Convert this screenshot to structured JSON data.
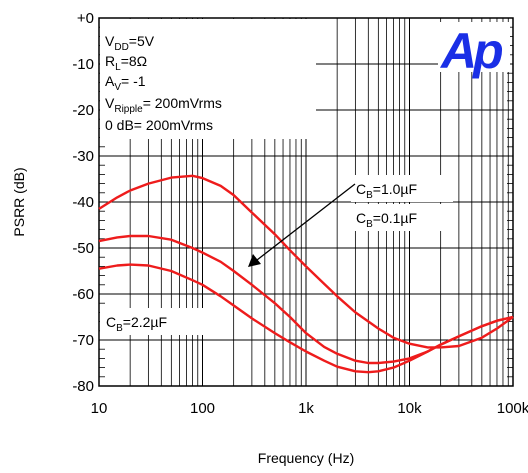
{
  "chart_data": {
    "type": "line",
    "xlabel": "Frequency (Hz)",
    "ylabel": "PSRR (dB)",
    "x_scale": "log",
    "xlim": [
      10,
      100000
    ],
    "ylim": [
      -80,
      0
    ],
    "x_ticks": [
      {
        "value": 10,
        "label": "10"
      },
      {
        "value": 100,
        "label": "100"
      },
      {
        "value": 1000,
        "label": "1k"
      },
      {
        "value": 10000,
        "label": "10k"
      },
      {
        "value": 100000,
        "label": "100k"
      }
    ],
    "y_ticks": [
      {
        "value": 0,
        "label": "+0"
      },
      {
        "value": -10,
        "label": "-10"
      },
      {
        "value": -20,
        "label": "-20"
      },
      {
        "value": -30,
        "label": "-30"
      },
      {
        "value": -40,
        "label": "-40"
      },
      {
        "value": -50,
        "label": "-50"
      },
      {
        "value": -60,
        "label": "-60"
      },
      {
        "value": -70,
        "label": "-70"
      },
      {
        "value": -80,
        "label": "-80"
      }
    ],
    "grid": true,
    "line_color": "#ee1c1c",
    "series": [
      {
        "name": "CB=0.1µF",
        "x": [
          10,
          15,
          20,
          30,
          50,
          80,
          100,
          150,
          200,
          300,
          500,
          700,
          1000,
          1500,
          2000,
          3000,
          5000,
          7000,
          10000,
          15000,
          20000,
          30000,
          50000,
          70000,
          100000
        ],
        "y": [
          -41.5,
          -39,
          -37.5,
          -36,
          -34.7,
          -34.3,
          -34.8,
          -36.5,
          -38.5,
          -42.3,
          -47,
          -50.5,
          -54,
          -57.8,
          -60.5,
          -64,
          -67.5,
          -69.5,
          -70.8,
          -71.6,
          -71.6,
          -71.3,
          -69.5,
          -67.5,
          -65
        ]
      },
      {
        "name": "CB=1.0µF",
        "x": [
          10,
          15,
          20,
          30,
          50,
          80,
          100,
          150,
          200,
          300,
          500,
          700,
          1000,
          1500,
          2000,
          3000,
          4000,
          5000,
          7000,
          10000,
          15000,
          20000,
          30000,
          50000,
          70000,
          100000
        ],
        "y": [
          -48.5,
          -47.7,
          -47.4,
          -47.4,
          -48.2,
          -50,
          -51,
          -53,
          -55,
          -58,
          -62,
          -65,
          -68.5,
          -71.5,
          -73,
          -74.5,
          -75,
          -75,
          -74.7,
          -74,
          -72.5,
          -71,
          -69.2,
          -67,
          -65.8,
          -65
        ]
      },
      {
        "name": "CB=2.2µF",
        "x": [
          10,
          15,
          20,
          30,
          50,
          80,
          100,
          150,
          200,
          300,
          500,
          700,
          1000,
          1500,
          2000,
          3000,
          4000,
          5000,
          7000,
          10000,
          15000,
          20000,
          30000,
          50000,
          70000,
          100000
        ],
        "y": [
          -54.5,
          -53.8,
          -53.6,
          -53.8,
          -55,
          -57,
          -58,
          -60.5,
          -62.5,
          -65.3,
          -68.5,
          -70.5,
          -72.5,
          -74.5,
          -75.8,
          -76.8,
          -77,
          -76.8,
          -76,
          -74.5,
          -72.5,
          -71,
          -69.2,
          -67,
          -65.8,
          -65
        ]
      }
    ],
    "conditions": [
      {
        "main": "V",
        "sub": "DD",
        "rest": "=5V"
      },
      {
        "main": "R",
        "sub": "L",
        "rest": "=8Ω"
      },
      {
        "main": "A",
        "sub": "V",
        "rest": "= -1"
      },
      {
        "main": "V",
        "sub": "Ripple",
        "rest": "= 200mVrms"
      },
      {
        "main": "0 dB= 200mVrms",
        "sub": "",
        "rest": ""
      }
    ],
    "curve_labels": [
      {
        "main": "C",
        "sub": "B",
        "rest": "=1.0µF"
      },
      {
        "main": "C",
        "sub": "B",
        "rest": "=0.1µF"
      },
      {
        "main": "C",
        "sub": "B",
        "rest": "=2.2µF"
      }
    ],
    "logo": {
      "text": "Ap",
      "color": "#1a2fe6"
    }
  }
}
